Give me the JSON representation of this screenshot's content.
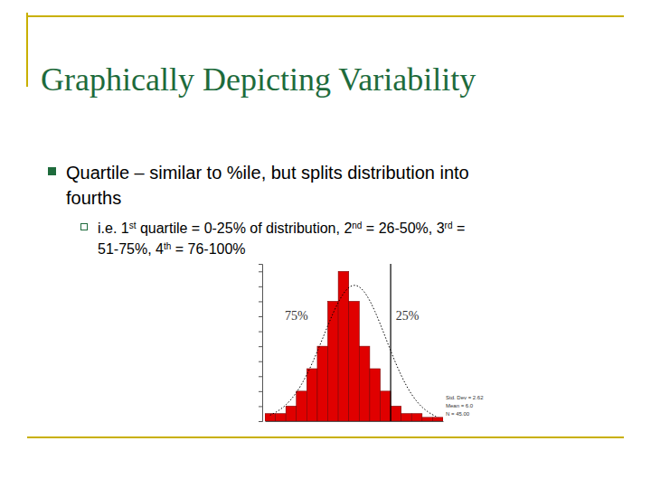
{
  "slide": {
    "title": "Graphically Depicting Variability",
    "bullets": [
      {
        "lines": [
          "Quartile – similar to %ile, but splits distribution into",
          "fourths"
        ],
        "sub": [
          [
            {
              "text": "i.e. 1"
            },
            {
              "sup": "st"
            },
            {
              "text": " quartile = 0-25% of distribution, 2"
            },
            {
              "sup": "nd"
            },
            {
              "text": " = 26-50%, 3"
            },
            {
              "sup": "rd"
            },
            {
              "text": " ="
            }
          ],
          [
            {
              "text": "51-75%, 4"
            },
            {
              "sup": "th"
            },
            {
              "text": " = 76-100%"
            }
          ]
        ]
      }
    ]
  },
  "chart_data": {
    "type": "histogram",
    "bins": [
      0,
      1,
      2,
      3,
      4,
      5,
      6,
      7,
      8,
      9,
      10,
      11,
      12,
      13,
      14,
      15,
      16,
      17
    ],
    "series": [
      {
        "type": "bar",
        "color": "#e00000",
        "values": [
          1,
          1,
          2,
          4,
          7,
          10,
          16,
          20,
          16,
          10,
          7,
          4,
          2,
          1,
          1,
          0.5,
          0.5
        ]
      },
      {
        "type": "line",
        "color": "#000000",
        "line_style": "dotted",
        "values": [
          0.8,
          1.5,
          2.8,
          4.8,
          7.6,
          11,
          14.5,
          17.3,
          18.5,
          17.5,
          14.8,
          11.2,
          7.6,
          4.6,
          2.5,
          1.2,
          0.5
        ]
      }
    ],
    "xlim": [
      0,
      17
    ],
    "ylim": [
      0,
      21
    ],
    "yticks": [
      0,
      2,
      4,
      6,
      8,
      10,
      12,
      14,
      16,
      18,
      20
    ],
    "grid": false,
    "tick_labels": false,
    "vline": 12,
    "annotations": [
      {
        "text": "75%",
        "x": 3,
        "y": 13.5
      },
      {
        "text": "25%",
        "x": 13.6,
        "y": 13.5
      }
    ],
    "stats": [
      "Std. Dev = 2.62",
      "Mean = 6.0",
      "N = 45.00"
    ]
  }
}
